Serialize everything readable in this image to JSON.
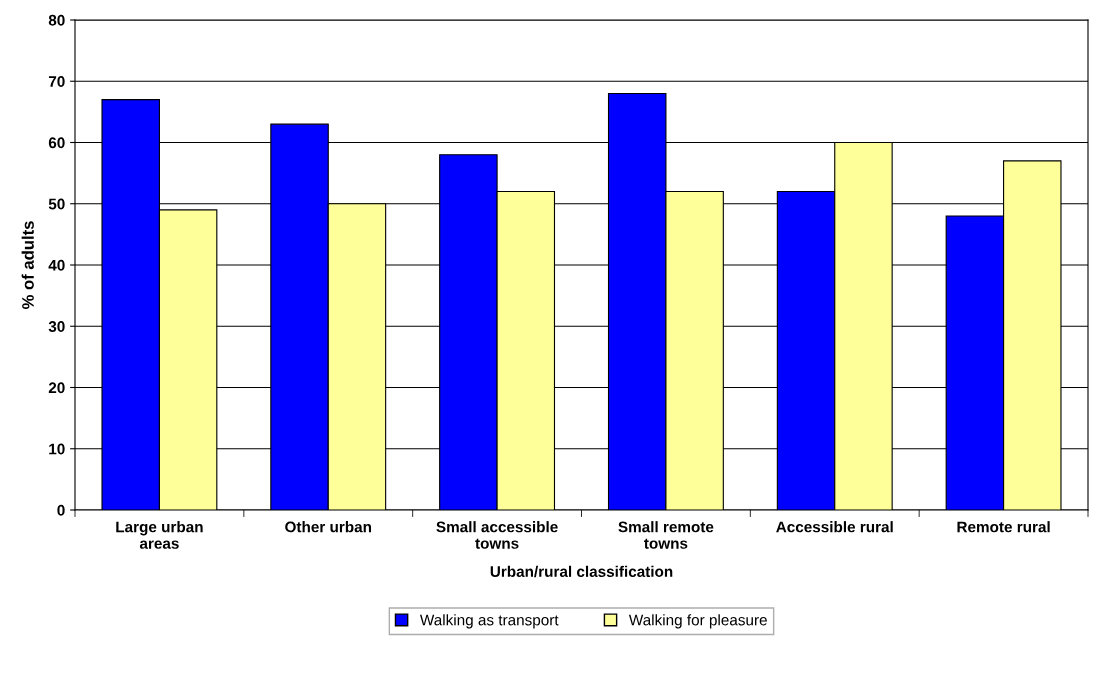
{
  "chart_data": {
    "type": "bar",
    "xlabel": "Urban/rural classification",
    "ylabel": "% of adults",
    "categories": [
      "Large urban areas",
      "Other urban",
      "Small accessible towns",
      "Small remote towns",
      "Accessible rural",
      "Remote rural"
    ],
    "series": [
      {
        "name": "Walking as transport",
        "color": "#0000ff",
        "values": [
          67,
          63,
          58,
          68,
          52,
          48
        ]
      },
      {
        "name": "Walking for pleasure",
        "color": "#ffff99",
        "values": [
          49,
          50,
          52,
          52,
          60,
          57
        ]
      }
    ],
    "ylim": [
      0,
      80
    ],
    "yticks": [
      0,
      10,
      20,
      30,
      40,
      50,
      60,
      70,
      80
    ],
    "grid": "y",
    "legend": "bottom"
  }
}
